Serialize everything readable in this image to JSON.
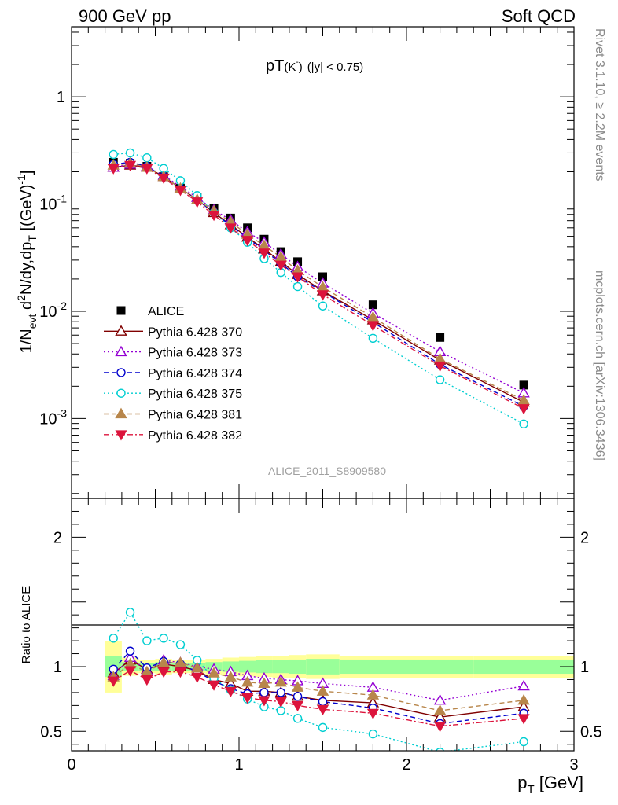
{
  "header": {
    "left": "900 GeV pp",
    "right": "Soft QCD"
  },
  "side_labels": {
    "top": "Rivet 3.1.10, ≥ 2.2M events",
    "bottom": "mcplots.cern.ch [arXiv:1306.3436]"
  },
  "chart_data": {
    "type": "scatter",
    "panels": [
      {
        "name": "main",
        "title_main": "pT",
        "title_particle": "(K",
        "title_sup": "-",
        "title_close": ")",
        "title_cut": "(|y| < 0.75)",
        "ylabel_parts": {
          "a": "1/N",
          "a_sub": "evt",
          "b": " d",
          "b_sup": "2",
          "c": "N/dy,dp",
          "c_sub": "T",
          "d": " [(GeV)",
          "d_sup": "-1",
          "e": "]"
        },
        "yscale": "log",
        "ylim": [
          0.00018,
          4.5
        ],
        "xlim": [
          0,
          3
        ],
        "y_tick_labels": [
          {
            "value": 1,
            "label": "1"
          },
          {
            "value": 0.1,
            "base": "10",
            "exp": "-1"
          },
          {
            "value": 0.01,
            "base": "10",
            "exp": "-2"
          },
          {
            "value": 0.001,
            "base": "10",
            "exp": "-3"
          }
        ],
        "watermark": "ALICE_2011_S8909580"
      },
      {
        "name": "ratio",
        "ylabel": "Ratio to ALICE",
        "ylim": [
          0.35,
          2.3
        ],
        "xlim": [
          0,
          3
        ],
        "y_tick_labels": [
          {
            "value": 0.5,
            "label": "0.5"
          },
          {
            "value": 1,
            "label": "1"
          },
          {
            "value": 2,
            "label": "2"
          }
        ],
        "band_edges": [
          0.2,
          0.3,
          0.4,
          0.5,
          0.6,
          0.7,
          0.8,
          0.9,
          1.0,
          1.1,
          1.2,
          1.3,
          1.4,
          1.6,
          2.0,
          2.4,
          3.0
        ],
        "band_green": [
          0.08,
          0.035,
          0.03,
          0.035,
          0.03,
          0.03,
          0.035,
          0.04,
          0.045,
          0.05,
          0.05,
          0.055,
          0.06,
          0.055,
          0.055,
          0.055,
          0.07
        ],
        "band_yellow": [
          0.2,
          0.07,
          0.05,
          0.06,
          0.05,
          0.05,
          0.06,
          0.07,
          0.075,
          0.08,
          0.085,
          0.09,
          0.095,
          0.085,
          0.085,
          0.085,
          0.11
        ]
      }
    ],
    "x_tick_labels": [
      "0",
      "1",
      "2",
      "3"
    ],
    "xlabel_main": "p",
    "xlabel_sub": "T",
    "xlabel_unit": " [GeV]",
    "x": [
      0.25,
      0.35,
      0.45,
      0.55,
      0.65,
      0.75,
      0.85,
      0.95,
      1.05,
      1.15,
      1.25,
      1.35,
      1.5,
      1.8,
      2.2,
      2.7
    ],
    "data": {
      "name": "ALICE",
      "values": [
        0.245,
        0.24,
        0.225,
        0.18,
        0.14,
        0.115,
        0.092,
        0.074,
        0.06,
        0.047,
        0.036,
        0.029,
        0.021,
        0.0115,
        0.0057,
        0.00205
      ]
    },
    "series": [
      {
        "name": "Pythia 6.428 370",
        "color": "#800000",
        "dash": "",
        "marker": "triangle-up-open",
        "values": [
          0.22,
          0.23,
          0.22,
          0.18,
          0.14,
          0.11,
          0.083,
          0.064,
          0.049,
          0.038,
          0.029,
          0.022,
          0.0155,
          0.0083,
          0.0035,
          0.00142
        ],
        "ratio": [
          0.95,
          1.05,
          0.98,
          1.02,
          1.0,
          0.97,
          0.9,
          0.87,
          0.81,
          0.81,
          0.8,
          0.77,
          0.74,
          0.72,
          0.61,
          0.69
        ]
      },
      {
        "name": "Pythia 6.428 373",
        "color": "#9400d3",
        "dash": "2,3",
        "marker": "triangle-up-open",
        "values": [
          0.22,
          0.235,
          0.225,
          0.185,
          0.145,
          0.115,
          0.088,
          0.071,
          0.055,
          0.044,
          0.034,
          0.026,
          0.0183,
          0.0096,
          0.0042,
          0.00173
        ],
        "ratio": [
          0.93,
          1.07,
          0.97,
          1.05,
          1.03,
          1.0,
          0.98,
          0.96,
          0.93,
          0.91,
          0.9,
          0.89,
          0.87,
          0.84,
          0.74,
          0.85
        ]
      },
      {
        "name": "Pythia 6.428 374",
        "color": "#0000cd",
        "dash": "6,4",
        "marker": "circle-open",
        "values": [
          0.235,
          0.245,
          0.225,
          0.18,
          0.14,
          0.11,
          0.083,
          0.063,
          0.048,
          0.037,
          0.028,
          0.021,
          0.0152,
          0.0079,
          0.0032,
          0.0013
        ],
        "ratio": [
          0.98,
          1.12,
          0.99,
          1.04,
          1.02,
          0.96,
          0.89,
          0.83,
          0.79,
          0.8,
          0.8,
          0.77,
          0.73,
          0.68,
          0.56,
          0.64
        ]
      },
      {
        "name": "Pythia 6.428 375",
        "color": "#00ced1",
        "dash": "2,3",
        "marker": "circle-open",
        "values": [
          0.29,
          0.3,
          0.27,
          0.215,
          0.165,
          0.12,
          0.083,
          0.06,
          0.044,
          0.031,
          0.023,
          0.017,
          0.0112,
          0.0056,
          0.0023,
          0.00089
        ],
        "ratio": [
          1.22,
          1.42,
          1.2,
          1.22,
          1.17,
          1.05,
          0.91,
          0.82,
          0.75,
          0.69,
          0.66,
          0.6,
          0.53,
          0.48,
          0.34,
          0.42
        ]
      },
      {
        "name": "Pythia 6.428 381",
        "color": "#b8864b",
        "dash": "6,4",
        "marker": "triangle-up-filled",
        "values": [
          0.23,
          0.24,
          0.22,
          0.18,
          0.14,
          0.11,
          0.086,
          0.068,
          0.052,
          0.041,
          0.032,
          0.024,
          0.0168,
          0.0088,
          0.0036,
          0.00148
        ],
        "ratio": [
          0.92,
          1.02,
          0.96,
          1.03,
          1.03,
          0.99,
          0.95,
          0.92,
          0.88,
          0.87,
          0.88,
          0.84,
          0.81,
          0.78,
          0.66,
          0.74
        ]
      },
      {
        "name": "Pythia 6.428 382",
        "color": "#dc143c",
        "dash": "7,3,2,3",
        "marker": "triangle-down-filled",
        "values": [
          0.215,
          0.23,
          0.215,
          0.175,
          0.135,
          0.105,
          0.079,
          0.06,
          0.046,
          0.035,
          0.027,
          0.021,
          0.0143,
          0.0074,
          0.0031,
          0.00124
        ],
        "ratio": [
          0.89,
          0.97,
          0.9,
          0.96,
          0.96,
          0.92,
          0.86,
          0.81,
          0.76,
          0.74,
          0.73,
          0.7,
          0.67,
          0.64,
          0.54,
          0.6
        ]
      }
    ],
    "legend_placement": "lower-left"
  }
}
